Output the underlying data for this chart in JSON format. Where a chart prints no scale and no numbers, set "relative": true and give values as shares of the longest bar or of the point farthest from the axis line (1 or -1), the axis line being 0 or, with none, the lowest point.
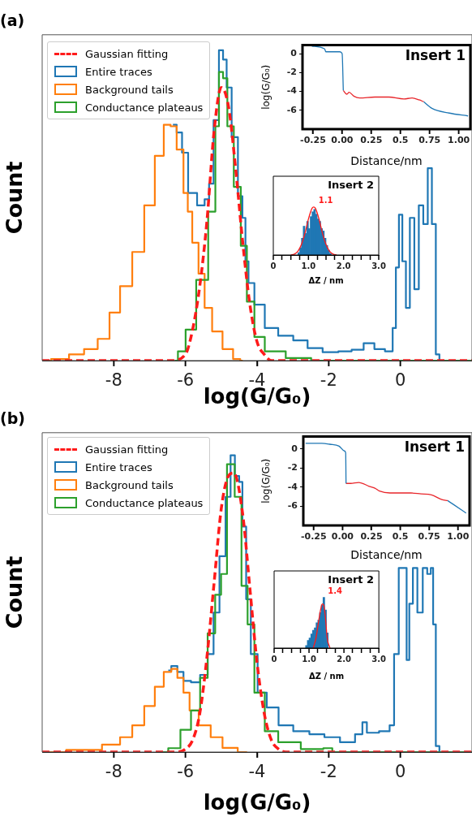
{
  "chart_data": [
    {
      "type": "step",
      "title": "(a)",
      "xlabel": "log(G/G₀)",
      "ylabel": "Count",
      "xlim": [
        -10,
        2
      ],
      "xticks": [
        -8,
        -6,
        -4,
        -2,
        0
      ],
      "relative": true,
      "legend": "top left",
      "series": [
        {
          "name": "Gaussian fitting",
          "type": "line",
          "line_style": "dashed",
          "color": "#ff1a1a",
          "x": [
            -10,
            -6.4,
            -6.0,
            -5.8,
            -5.6,
            -5.4,
            -5.2,
            -5.0,
            -4.8,
            -4.6,
            -4.4,
            -4.2,
            -4.0,
            -3.8,
            -3.6,
            2
          ],
          "values": [
            0,
            0,
            0.02,
            0.1,
            0.24,
            0.45,
            0.74,
            0.88,
            0.82,
            0.62,
            0.38,
            0.18,
            0.06,
            0.02,
            0,
            0
          ]
        },
        {
          "name": "Entire traces",
          "color": "#1f77b4",
          "x": [
            -6.35,
            -6.14,
            -6.05,
            -5.8,
            -5.55,
            -5.38,
            -5.3,
            -5.13,
            -5.0,
            -4.9,
            -4.8,
            -4.62,
            -4.45,
            -4.37,
            -4.28,
            -4.2,
            -3.95,
            -3.62,
            -3.2,
            -2.78,
            -2.4,
            -1.94,
            -1.52,
            -1.2,
            -0.85,
            -0.6,
            -0.26,
            -0.17,
            -0.08,
            0.0,
            0.11,
            0.2,
            0.33,
            0.45,
            0.58,
            0.7,
            0.83,
            0.93,
            1.05,
            1.13,
            2
          ],
          "values": [
            0.76,
            0.735,
            0.67,
            0.54,
            0.5,
            0.52,
            0.57,
            0.775,
            1.0,
            0.97,
            0.88,
            0.72,
            0.53,
            0.46,
            0.32,
            0.25,
            0.18,
            0.105,
            0.08,
            0.065,
            0.04,
            0.027,
            0.03,
            0.035,
            0.056,
            0.037,
            0.03,
            0.105,
            0.3,
            0.47,
            0.32,
            0.17,
            0.46,
            0.23,
            0.5,
            0.44,
            0.62,
            0.44,
            0.02,
            0,
            0
          ]
        },
        {
          "name": "Background tails",
          "color": "#ff7f0e",
          "x": [
            -10,
            -9.5,
            -9,
            -8.66,
            -8.24,
            -8.0,
            -7.65,
            -7.32,
            -6.98,
            -6.73,
            -6.48,
            -6.35,
            -6.14,
            -5.97,
            -5.9,
            -5.72,
            -5.55,
            -5.38,
            -5.13,
            -4.8,
            -4.54,
            -4.4
          ],
          "values": [
            0,
            0.005,
            0.02,
            0.037,
            0.07,
            0.155,
            0.24,
            0.35,
            0.5,
            0.66,
            0.76,
            0.755,
            0.68,
            0.54,
            0.48,
            0.38,
            0.28,
            0.17,
            0.094,
            0.037,
            0.005,
            0
          ]
        },
        {
          "name": "Conductance plateaus",
          "color": "#2ca02c",
          "x": [
            -6.3,
            -6.12,
            -5.87,
            -5.53,
            -5.2,
            -5.13,
            -5.0,
            -4.9,
            -4.76,
            -4.54,
            -4.37,
            -4.2,
            -3.95,
            -3.62,
            -2.78,
            -2.2,
            2
          ],
          "values": [
            0,
            0.03,
            0.1,
            0.26,
            0.48,
            0.755,
            0.93,
            0.91,
            0.755,
            0.56,
            0.37,
            0.19,
            0.076,
            0.03,
            0.008,
            0,
            0
          ]
        }
      ]
    },
    {
      "type": "line",
      "title": "Insert 1",
      "xlabel": "Distance/nm",
      "ylabel": "log(G/G₀)",
      "xlim": [
        -0.34,
        1.1
      ],
      "ylim": [
        -8,
        0.9
      ],
      "xticks": [
        -0.25,
        {
          "value": 0,
          "label": "0.00"
        },
        0.25,
        0.5,
        0.75,
        {
          "value": 1,
          "label": "1.00"
        }
      ],
      "yticks": [
        0,
        -2,
        -4,
        -6
      ],
      "series": [
        {
          "color": "#1f77b4",
          "x": [
            -0.26,
            -0.15,
            -0.14,
            -0.02,
            0.0,
            0.01
          ],
          "values": [
            0.8,
            0.5,
            0.2,
            0.2,
            0.0,
            -3.9
          ]
        },
        {
          "color": "#e8262b",
          "x": [
            0.01,
            0.04,
            0.06,
            0.1,
            0.15,
            0.28,
            0.4,
            0.53,
            0.6,
            0.66,
            0.7
          ],
          "values": [
            -3.9,
            -4.3,
            -4.1,
            -4.5,
            -4.7,
            -4.6,
            -4.6,
            -4.8,
            -4.7,
            -4.9,
            -5.1
          ]
        },
        {
          "color": "#1f77b4",
          "x": [
            0.7,
            0.77,
            0.92,
            1.08
          ],
          "values": [
            -5.1,
            -5.8,
            -6.3,
            -6.6
          ]
        }
      ]
    },
    {
      "type": "histogram",
      "title": "Insert 2",
      "xlabel": "ΔZ / nm",
      "xlim": [
        0,
        3
      ],
      "xticks": [
        0,
        {
          "value": 0.5,
          "label": null
        },
        {
          "value": 1,
          "label": "1.0"
        },
        {
          "value": 1.5,
          "label": null
        },
        {
          "value": 2,
          "label": "2.0"
        },
        {
          "value": 2.5,
          "label": null
        },
        {
          "value": 3,
          "label": "3.0"
        }
      ],
      "relative": true,
      "bins": [
        0.7,
        0.75,
        0.8,
        0.85,
        0.9,
        0.95,
        1.0,
        1.05,
        1.1,
        1.15,
        1.2,
        1.25,
        1.3,
        1.35,
        1.4,
        1.45,
        1.5,
        1.55,
        1.6,
        1.65
      ],
      "annotations": [
        {
          "text": "1.1",
          "x": 1.15,
          "y": 1
        }
      ],
      "series": [
        {
          "type": "histogram",
          "color": "#1f77b4",
          "values": [
            0.05,
            0.15,
            0.35,
            0.6,
            0.45,
            0.7,
            0.55,
            0.8,
            0.9,
            0.95,
            0.85,
            0.75,
            0.7,
            0.55,
            0.5,
            0.35,
            0.2,
            0.1,
            0.03
          ]
        },
        {
          "type": "line",
          "color": "#ff1a1a",
          "x": [
            0.5,
            0.6,
            0.7,
            0.8,
            0.9,
            1.0,
            1.1,
            1.15,
            1.2,
            1.3,
            1.4,
            1.5,
            1.6,
            1.7,
            1.8
          ],
          "values": [
            0,
            0.02,
            0.08,
            0.22,
            0.45,
            0.75,
            0.97,
            1.0,
            0.97,
            0.75,
            0.45,
            0.22,
            0.08,
            0.02,
            0
          ]
        }
      ]
    },
    {
      "type": "step",
      "title": "(b)",
      "xlabel": "log(G/G₀)",
      "ylabel": "Count",
      "xlim": [
        -10,
        2
      ],
      "xticks": [
        -8,
        -6,
        -4,
        -2,
        0
      ],
      "relative": true,
      "legend": "top left",
      "series": [
        {
          "name": "Gaussian fitting",
          "type": "line",
          "line_style": "dashed",
          "color": "#ff1a1a",
          "x": [
            -10,
            -6.2,
            -6.0,
            -5.8,
            -5.6,
            -5.4,
            -5.2,
            -5.0,
            -4.8,
            -4.65,
            -4.4,
            -4.2,
            -4.0,
            -3.8,
            -3.6,
            -3.4,
            -3.2,
            2
          ],
          "values": [
            0,
            0,
            0.01,
            0.04,
            0.13,
            0.32,
            0.57,
            0.82,
            0.93,
            0.94,
            0.8,
            0.55,
            0.3,
            0.13,
            0.04,
            0.01,
            0,
            0
          ]
        },
        {
          "name": "Entire traces",
          "color": "#1f77b4",
          "x": [
            -6.48,
            -6.31,
            -6.14,
            -5.97,
            -5.72,
            -5.46,
            -5.3,
            -5.13,
            -4.97,
            -4.79,
            -4.69,
            -4.55,
            -4.45,
            -4.37,
            -4.24,
            -4.11,
            -3.86,
            -3.6,
            -3.2,
            -2.78,
            -2.3,
            -1.94,
            -1.43,
            -1.1,
            -1.02,
            -0.85,
            -0.34,
            -0.26,
            -0.09,
            0.0,
            0.08,
            0.15,
            0.2,
            0.3,
            0.4,
            0.55,
            0.7,
            0.8,
            0.9,
            0.93,
            1.05,
            1.13,
            2
          ],
          "values": [
            0.275,
            0.29,
            0.27,
            0.24,
            0.235,
            0.26,
            0.33,
            0.47,
            0.66,
            0.86,
            1.0,
            0.93,
            0.91,
            0.76,
            0.515,
            0.33,
            0.2,
            0.15,
            0.09,
            0.07,
            0.06,
            0.05,
            0.033,
            0.06,
            0.1,
            0.065,
            0.07,
            0.09,
            0.33,
            0.62,
            0.62,
            0.62,
            0.31,
            0.5,
            0.62,
            0.47,
            0.62,
            0.6,
            0.62,
            0.43,
            0.02,
            0,
            0
          ]
        },
        {
          "name": "Background tails",
          "color": "#ff7f0e",
          "x": [
            -10,
            -8.66,
            -8.0,
            -7.65,
            -7.32,
            -6.98,
            -6.73,
            -6.48,
            -6.31,
            -6.14,
            -5.97,
            -5.8,
            -5.46,
            -5.13,
            -4.8,
            -4.28
          ],
          "values": [
            0,
            0.007,
            0.025,
            0.05,
            0.09,
            0.155,
            0.22,
            0.27,
            0.28,
            0.25,
            0.2,
            0.14,
            0.09,
            0.05,
            0.014,
            0
          ]
        },
        {
          "name": "Conductance plateaus",
          "color": "#2ca02c",
          "x": [
            -6.65,
            -6.31,
            -5.97,
            -5.72,
            -5.46,
            -5.3,
            -5.04,
            -4.97,
            -4.71,
            -4.54,
            -4.33,
            -4.2,
            -3.95,
            -3.62,
            -3.2,
            -2.36,
            -1.94,
            -1.86,
            2
          ],
          "values": [
            0,
            0.013,
            0.075,
            0.14,
            0.25,
            0.4,
            0.53,
            0.6,
            0.97,
            0.86,
            0.56,
            0.43,
            0.2,
            0.07,
            0.033,
            0.01,
            0.013,
            0,
            0
          ]
        }
      ]
    },
    {
      "type": "line",
      "title": "Insert 1",
      "xlabel": "Distance/nm",
      "ylabel": "log(G/G₀)",
      "xlim": [
        -0.34,
        1.1
      ],
      "ylim": [
        -8,
        1.3
      ],
      "xticks": [
        -0.25,
        {
          "value": 0,
          "label": "0.00"
        },
        0.25,
        0.5,
        0.75,
        {
          "value": 1,
          "label": "1.00"
        }
      ],
      "yticks": [
        0,
        -2,
        -4,
        -6
      ],
      "series": [
        {
          "color": "#1f77b4",
          "x": [
            -0.32,
            -0.18,
            -0.11,
            -0.03,
            0.016,
            0.027,
            0.03
          ],
          "values": [
            0.6,
            0.6,
            0.5,
            0.3,
            -0.2,
            -0.4,
            -3.6
          ]
        },
        {
          "color": "#e8262b",
          "x": [
            0.03,
            0.07,
            0.14,
            0.23,
            0.28,
            0.32,
            0.41,
            0.5,
            0.59,
            0.68,
            0.77,
            0.86,
            0.91
          ],
          "values": [
            -3.6,
            -3.6,
            -3.5,
            -3.9,
            -4.1,
            -4.4,
            -4.6,
            -4.6,
            -4.6,
            -4.7,
            -4.8,
            -5.3,
            -5.4
          ]
        },
        {
          "color": "#1f77b4",
          "x": [
            0.91,
            0.96,
            1.07
          ],
          "values": [
            -5.4,
            -5.8,
            -6.7
          ]
        }
      ]
    },
    {
      "type": "histogram",
      "title": "Insert 2",
      "xlabel": "ΔZ / nm",
      "xlim": [
        0,
        3
      ],
      "xticks": [
        0,
        {
          "value": 0.5,
          "label": null
        },
        {
          "value": 1,
          "label": "1.0"
        },
        {
          "value": 1.5,
          "label": null
        },
        {
          "value": 2,
          "label": "2.0"
        },
        {
          "value": 2.5,
          "label": null
        },
        {
          "value": 3,
          "label": "3.0"
        }
      ],
      "relative": true,
      "bins": [
        0.9,
        0.95,
        1.0,
        1.05,
        1.1,
        1.15,
        1.2,
        1.25,
        1.3,
        1.35,
        1.4,
        1.45,
        1.5,
        1.55
      ],
      "annotations": [
        {
          "text": "1.4",
          "x": 1.4,
          "y": 1
        }
      ],
      "series": [
        {
          "type": "histogram",
          "color": "#1f77b4",
          "values": [
            0.05,
            0.15,
            0.2,
            0.28,
            0.35,
            0.4,
            0.5,
            0.55,
            0.7,
            0.85,
            1.0,
            0.75,
            0.3
          ]
        },
        {
          "type": "line",
          "color": "#ff1a1a",
          "x": [
            1.12,
            1.2,
            1.28,
            1.33,
            1.38,
            1.42,
            1.47,
            1.52,
            1.6
          ],
          "values": [
            0,
            0.2,
            0.55,
            0.75,
            0.87,
            0.85,
            0.6,
            0.2,
            0
          ]
        }
      ]
    }
  ]
}
